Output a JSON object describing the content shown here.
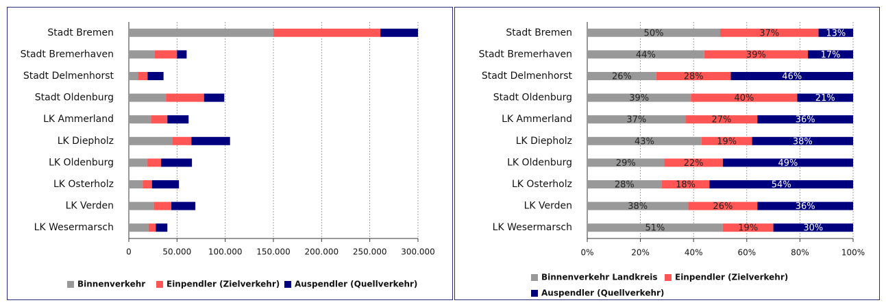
{
  "chart_data": [
    {
      "type": "bar",
      "orientation": "horizontal",
      "stacked": true,
      "categories": [
        "Stadt Bremen",
        "Stadt Bremerhaven",
        "Stadt Delmenhorst",
        "Stadt Oldenburg",
        "LK Ammerland",
        "LK Diepholz",
        "LK Oldenburg",
        "LK Osterholz",
        "LK Verden",
        "LK Wesermarsch"
      ],
      "series": [
        {
          "name": "Binnenverkehr",
          "color": "#999999",
          "values": [
            150000,
            27000,
            9500,
            38500,
            23000,
            45000,
            19000,
            14500,
            26000,
            20500
          ]
        },
        {
          "name": "Einpendler (Zielverkehr)",
          "color": "#ff5555",
          "values": [
            111000,
            23000,
            10000,
            39500,
            17000,
            20000,
            14500,
            9500,
            18000,
            7500
          ]
        },
        {
          "name": "Auspendler (Quellverkehr)",
          "color": "#00007f",
          "values": [
            39000,
            10000,
            16500,
            21000,
            22000,
            40000,
            32000,
            28000,
            25000,
            12000
          ]
        }
      ],
      "xlim": [
        0,
        300000
      ],
      "xticks": [
        0,
        {
          "value": 50000,
          "label": "50.000"
        },
        {
          "value": 100000,
          "label": "100.000"
        },
        {
          "value": 150000,
          "label": "150.000"
        },
        {
          "value": 200000,
          "label": "200.000"
        },
        {
          "value": 250000,
          "label": "250.000"
        },
        {
          "value": 300000,
          "label": "300.000"
        }
      ],
      "grid": true,
      "legend": "bottom"
    },
    {
      "type": "bar",
      "orientation": "horizontal",
      "stacked": true,
      "categories": [
        "Stadt Bremen",
        "Stadt Bremerhaven",
        "Stadt Delmenhorst",
        "Stadt Oldenburg",
        "LK Ammerland",
        "LK Diepholz",
        "LK Oldenburg",
        "LK Osterholz",
        "LK Verden",
        "LK Wesermarsch"
      ],
      "series": [
        {
          "name": "Binnenverkehr Landkreis",
          "color": "#999999",
          "values": [
            50,
            44,
            26,
            39,
            37,
            43,
            29,
            28,
            38,
            51
          ],
          "value_labels": [
            "50%",
            "44%",
            "26%",
            "39%",
            "37%",
            "43%",
            "29%",
            "28%",
            "38%",
            "51%"
          ]
        },
        {
          "name": "Einpendler (Zielverkehr)",
          "color": "#ff5555",
          "values": [
            37,
            39,
            28,
            40,
            27,
            19,
            22,
            18,
            26,
            19
          ],
          "value_labels": [
            "37%",
            "39%",
            "28%",
            "40%",
            "27%",
            "19%",
            "22%",
            "18%",
            "26%",
            "19%"
          ]
        },
        {
          "name": "Auspendler (Quellverkehr)",
          "color": "#00007f",
          "values": [
            13,
            17,
            46,
            21,
            36,
            38,
            49,
            54,
            36,
            30
          ],
          "value_labels": [
            "13%",
            "17%",
            "46%",
            "21%",
            "36%",
            "38%",
            "49%",
            "54%",
            "36%",
            "30%"
          ]
        }
      ],
      "xlim": [
        0,
        100
      ],
      "xticks": [
        {
          "value": 0,
          "label": "0%"
        },
        {
          "value": 20,
          "label": "20%"
        },
        {
          "value": 40,
          "label": "40%"
        },
        {
          "value": 60,
          "label": "60%"
        },
        {
          "value": 80,
          "label": "80%"
        },
        {
          "value": 100,
          "label": "100%"
        }
      ],
      "grid": true,
      "legend": "bottom"
    }
  ]
}
